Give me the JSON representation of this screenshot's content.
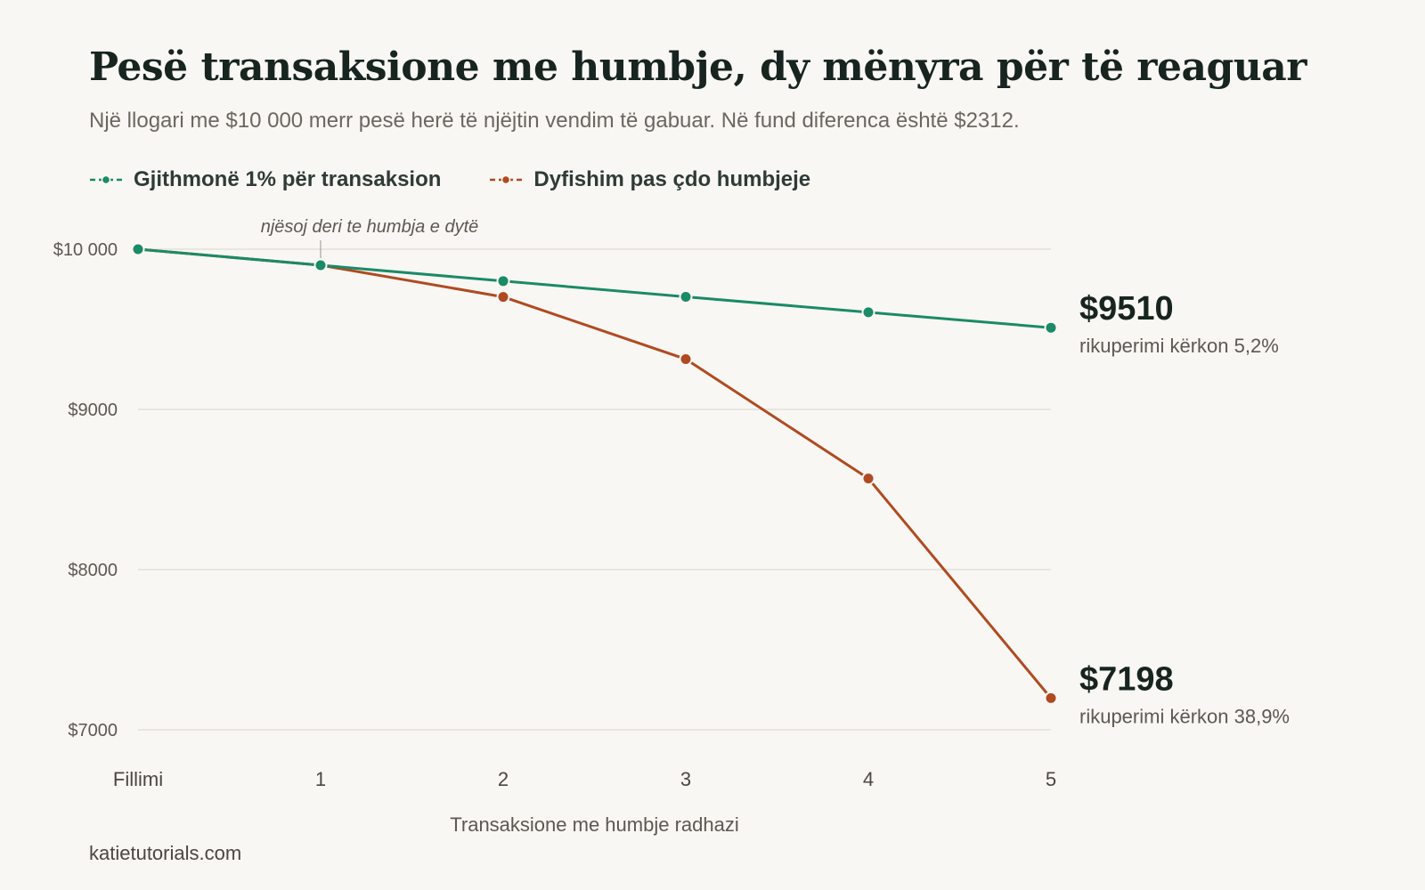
{
  "header": {
    "title": "Pesë transaksione me humbje, dy mënyra për të reaguar",
    "subtitle": "Një llogari me $10 000 merr pesë herë të njëjtin vendim të gabuar. Në fund diferenca është $2312."
  },
  "footer": {
    "source": "katietutorials.com"
  },
  "chart_data": {
    "type": "line",
    "title": "Pesë transaksione me humbje, dy mënyra për të reaguar",
    "subtitle": "Një llogari me $10 000 merr pesë herë të njëjtin vendim të gabuar. Në fund diferenca është $2312.",
    "xlabel": "Transaksione me humbje radhazi",
    "ylabel": "",
    "x": [
      0,
      1,
      2,
      3,
      4,
      5
    ],
    "x_tick_labels": [
      "Fillimi",
      "1",
      "2",
      "3",
      "4",
      "5"
    ],
    "ylim": [
      7000,
      10000
    ],
    "y_ticks": [
      7000,
      8000,
      9000,
      10000
    ],
    "y_tick_labels": [
      "$7000",
      "$8000",
      "$9000",
      "$10 000"
    ],
    "grid": true,
    "legend_position": "top-left",
    "series": [
      {
        "name": "Gjithmonë 1% për transaksion",
        "color": "#1b8a67",
        "values": [
          10000,
          9900,
          9801,
          9703,
          9606,
          9510
        ],
        "end_label": "$9510",
        "end_note": "rikuperimi kërkon 5,2%"
      },
      {
        "name": "Dyfishim pas çdo humbjeje",
        "color": "#b04a22",
        "values": [
          10000,
          9900,
          9702,
          9314,
          8569,
          7198
        ],
        "end_label": "$7198",
        "end_note": "rikuperimi kërkon 38,9%"
      }
    ],
    "annotations": [
      {
        "x": 1,
        "text": "njësoj deri te humbja e dytë"
      }
    ]
  }
}
